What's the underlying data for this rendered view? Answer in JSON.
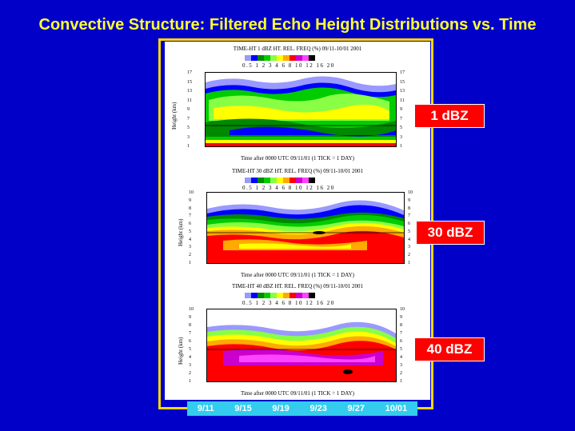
{
  "title": "Convective Structure:  Filtered Echo Height Distributions vs. Time",
  "legend_values": [
    "0.5",
    "1",
    "2",
    "3",
    "4",
    "6",
    "8",
    "10",
    "12",
    "16",
    "20"
  ],
  "legend_colors": [
    "#9999ff",
    "#0000ff",
    "#008800",
    "#00cc00",
    "#88ff44",
    "#ffff00",
    "#ffaa00",
    "#ff0000",
    "#cc00cc",
    "#ff44ff",
    "#000000"
  ],
  "panels": [
    {
      "header": "TIME-HT 1 dBZ HT. REL. FREQ (%) 09/11-10/01 2001",
      "ylabel": "Height (km)",
      "yticks": [
        "17",
        "15",
        "13",
        "11",
        "9",
        "7",
        "5",
        "3",
        "1"
      ],
      "xlabel": "Time after 0000 UTC 09/11/01 (1 TICK = 1 DAY)",
      "tag": "1 dBZ"
    },
    {
      "header": "TIME-HT 30 dBZ HT. REL. FREQ (%) 09/11-10/01 2001",
      "ylabel": "Height (km)",
      "yticks": [
        "10",
        "9",
        "8",
        "7",
        "6",
        "5",
        "4",
        "3",
        "2",
        "1"
      ],
      "xlabel": "Time after 0000 UTC 09/11/01 (1 TICK = 1 DAY)",
      "tag": "30 dBZ"
    },
    {
      "header": "TIME-HT 40 dBZ HT. REL. FREQ (%) 09/11-10/01 2001",
      "ylabel": "Height (km)",
      "yticks": [
        "10",
        "9",
        "8",
        "7",
        "6",
        "5",
        "4",
        "3",
        "2",
        "1"
      ],
      "xlabel": "Time after 0000 UTC 09/11/01 (1 TICK = 1 DAY)",
      "tag": "40 dBZ"
    }
  ],
  "dates": [
    "9/11",
    "9/15",
    "9/19",
    "9/23",
    "9/27",
    "10/01"
  ]
}
